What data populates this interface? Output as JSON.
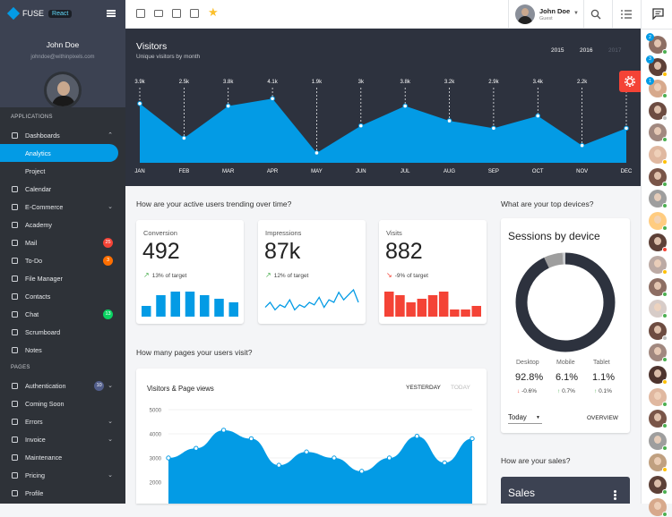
{
  "app": {
    "name": "FUSE",
    "framework_badge": "React"
  },
  "user": {
    "name": "John Doe",
    "email": "johndoe@withinpixels.com",
    "role": "Guest"
  },
  "nav": {
    "section_apps": "APPLICATIONS",
    "section_pages": "PAGES",
    "items": [
      {
        "label": "Dashboards",
        "icon": "dashboard-icon",
        "chevron": "⌃"
      },
      {
        "label": "Analytics",
        "sub": true,
        "active": true
      },
      {
        "label": "Project",
        "sub": true
      },
      {
        "label": "Calendar",
        "icon": "calendar-icon"
      },
      {
        "label": "E-Commerce",
        "icon": "cart-icon",
        "chevron": "⌄"
      },
      {
        "label": "Academy",
        "icon": "school-icon"
      },
      {
        "label": "Mail",
        "icon": "mail-icon",
        "badge": "25",
        "badge_color": "#f44336"
      },
      {
        "label": "To-Do",
        "icon": "checkbox-icon",
        "badge": "3",
        "badge_color": "#ff6f00"
      },
      {
        "label": "File Manager",
        "icon": "folder-icon"
      },
      {
        "label": "Contacts",
        "icon": "contacts-icon"
      },
      {
        "label": "Chat",
        "icon": "chat-icon",
        "badge": "13",
        "badge_color": "#09d261"
      },
      {
        "label": "Scrumboard",
        "icon": "board-icon"
      },
      {
        "label": "Notes",
        "icon": "notes-icon"
      },
      {
        "label": "Authentication",
        "icon": "lock-icon",
        "badge": "10",
        "badge_color": "#525e8a",
        "chevron": "⌄"
      },
      {
        "label": "Coming Soon",
        "icon": "alarm-icon"
      },
      {
        "label": "Errors",
        "icon": "error-icon",
        "chevron": "⌄"
      },
      {
        "label": "Invoice",
        "icon": "invoice-icon",
        "chevron": "⌄"
      },
      {
        "label": "Maintenance",
        "icon": "build-icon"
      },
      {
        "label": "Pricing",
        "icon": "dollar-icon",
        "chevron": "⌄"
      },
      {
        "label": "Profile",
        "icon": "person-icon"
      }
    ]
  },
  "visitors": {
    "title": "Visitors",
    "subtitle": "Unique visitors by month",
    "years": [
      {
        "label": "2015",
        "selected": false
      },
      {
        "label": "2016",
        "selected": true
      },
      {
        "label": "2017",
        "selected": false,
        "disabled": true
      }
    ]
  },
  "questions": {
    "trend": "How are your active users trending over time?",
    "devices": "What are your top devices?",
    "pages": "How many pages your users visit?",
    "sales": "How are your sales?"
  },
  "kpis": [
    {
      "title": "Conversion",
      "value": "492",
      "trend": "up",
      "note": "13% of target",
      "color": "#039be5",
      "bars": [
        3,
        6,
        7,
        7,
        6,
        5,
        4
      ]
    },
    {
      "title": "Impressions",
      "value": "87k",
      "trend": "up",
      "note": "12% of target",
      "color": "#039be5",
      "line": [
        3,
        5,
        2,
        4,
        3,
        6,
        2,
        4,
        3,
        5,
        4,
        7,
        3,
        6,
        5,
        9,
        6,
        8,
        10,
        5
      ]
    },
    {
      "title": "Visits",
      "value": "882",
      "trend": "down",
      "note": "-9% of target",
      "color": "#f44336",
      "bars": [
        7,
        6,
        4,
        5,
        6,
        7,
        2,
        2,
        3
      ]
    }
  ],
  "sessions": {
    "title": "Sessions by device",
    "devices": [
      {
        "name": "Desktop",
        "value": "92.8%",
        "change": "-0.6%",
        "trend": "down",
        "pct": 92.8
      },
      {
        "name": "Mobile",
        "value": "6.1%",
        "change": "0.7%",
        "trend": "up",
        "pct": 6.1
      },
      {
        "name": "Tablet",
        "value": "1.1%",
        "change": "0.1%",
        "trend": "up",
        "pct": 1.1
      }
    ],
    "range": "Today",
    "overview": "OVERVIEW"
  },
  "pageviews": {
    "title": "Visitors & Page views",
    "tab_yesterday": "YESTERDAY",
    "tab_today": "TODAY"
  },
  "sales": {
    "title": "Sales"
  },
  "chart_data": [
    {
      "type": "area",
      "title": "Visitors",
      "categories": [
        "JAN",
        "FEB",
        "MAR",
        "APR",
        "MAY",
        "JUN",
        "JUL",
        "AUG",
        "SEP",
        "OCT",
        "NOV",
        "DEC"
      ],
      "values": [
        3900,
        2500,
        3800,
        4100,
        1900,
        3000,
        3800,
        3200,
        2900,
        3400,
        2200,
        2900
      ],
      "value_labels": [
        "3.9k",
        "2.5k",
        "3.8k",
        "4.1k",
        "1.9k",
        "3k",
        "3.8k",
        "3.2k",
        "2.9k",
        "3.4k",
        "2.2k",
        "2.9k"
      ],
      "color": "#039be5"
    },
    {
      "type": "area",
      "title": "Visitors & Page views",
      "y_ticks": [
        "5000",
        "4000",
        "3000",
        "2000"
      ],
      "ylim": [
        1500,
        5000
      ],
      "values": [
        3000,
        3400,
        4150,
        3800,
        2700,
        3250,
        3000,
        2450,
        3000,
        3900,
        2800,
        3800
      ],
      "color": "#039be5"
    }
  ],
  "rail": {
    "people": [
      {
        "bg": "#8d6e63",
        "badge": "2",
        "status": "#4caf50"
      },
      {
        "bg": "#5d4037",
        "badge": "3",
        "status": "#ffc107"
      },
      {
        "bg": "#d7a98c",
        "badge": "1",
        "status": "#4caf50"
      },
      {
        "bg": "#6d4c41",
        "status": "#bdbdbd"
      },
      {
        "bg": "#a1887f",
        "status": "#4caf50"
      },
      {
        "bg": "#e0b8a0",
        "status": "#ffc107"
      },
      {
        "bg": "#795548",
        "status": "#4caf50"
      },
      {
        "bg": "#9e9e9e",
        "status": "#4caf50"
      },
      {
        "bg": "#ffcc80",
        "status": "#4caf50"
      },
      {
        "bg": "#5d4037",
        "status": "#f44336"
      },
      {
        "bg": "#bcaaa4",
        "status": "#ffc107"
      },
      {
        "bg": "#8d6e63",
        "status": "#4caf50"
      },
      {
        "bg": "#d7ccc8",
        "status": "#4caf50"
      },
      {
        "bg": "#6d4c41",
        "status": "#bdbdbd"
      },
      {
        "bg": "#a1887f",
        "status": "#4caf50"
      },
      {
        "bg": "#4e342e",
        "status": "#ffc107"
      },
      {
        "bg": "#e0b8a0",
        "status": "#4caf50"
      },
      {
        "bg": "#795548",
        "status": "#4caf50"
      },
      {
        "bg": "#9e9e9e",
        "status": "#4caf50"
      },
      {
        "bg": "#c0a080",
        "status": "#ffc107"
      },
      {
        "bg": "#5d4037",
        "status": "#4caf50"
      },
      {
        "bg": "#d7a98c",
        "status": "#4caf50"
      }
    ]
  }
}
